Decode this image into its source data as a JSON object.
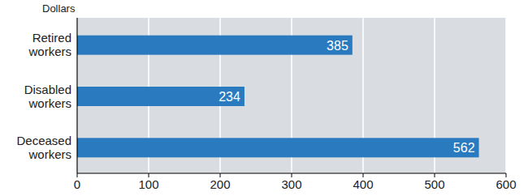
{
  "chart_data": {
    "type": "bar",
    "orientation": "horizontal",
    "x_label": "Dollars",
    "categories": [
      "Retired workers",
      "Disabled workers",
      "Deceased workers"
    ],
    "values": [
      385,
      234,
      562
    ],
    "color": "#2a7abf",
    "xlim": [
      0,
      600
    ],
    "xticks": [
      0,
      100,
      200,
      300,
      400,
      500,
      600
    ],
    "grid": true,
    "data_labels": true
  }
}
